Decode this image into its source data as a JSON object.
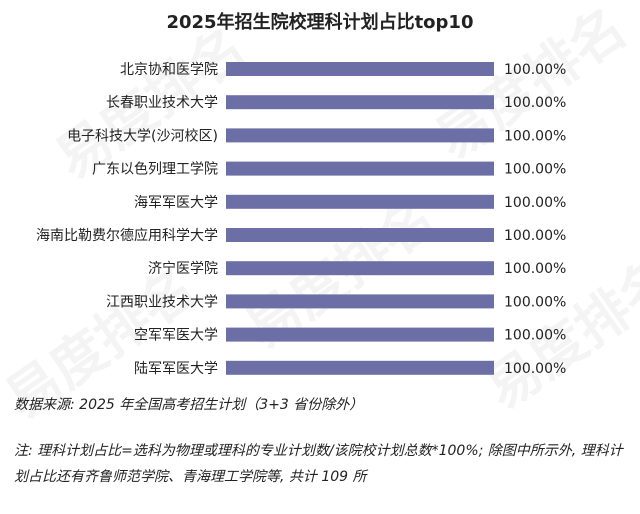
{
  "chart_data": {
    "type": "bar",
    "orientation": "horizontal",
    "title": "2025年招生院校理科计划占比top10",
    "categories": [
      "北京协和医学院",
      "长春职业技术大学",
      "电子科技大学(沙河校区)",
      "广东以色列理工学院",
      "海军军医大学",
      "海南比勒费尔德应用科学大学",
      "济宁医学院",
      "江西职业技术大学",
      "空军军医大学",
      "陆军军医大学"
    ],
    "values": [
      100,
      100,
      100,
      100,
      100,
      100,
      100,
      100,
      100,
      100
    ],
    "value_labels": [
      "100.00%",
      "100.00%",
      "100.00%",
      "100.00%",
      "100.00%",
      "100.00%",
      "100.00%",
      "100.00%",
      "100.00%",
      "100.00%"
    ],
    "xlim": [
      0,
      100
    ],
    "unit": "%",
    "grid": false,
    "legend": "none",
    "bar_color": "#6b6fa6"
  },
  "source_text": "数据来源: 2025 年全国高考招生计划（3+3 省份除外）",
  "note_text": "注: 理科计划占比=选科为物理或理科的专业计划数/该院校计划总数*100%; 除图中所示外, 理科计划占比还有齐鲁师范学院、青海理工学院等, 共计 109 所",
  "watermark_text": "易度排名"
}
